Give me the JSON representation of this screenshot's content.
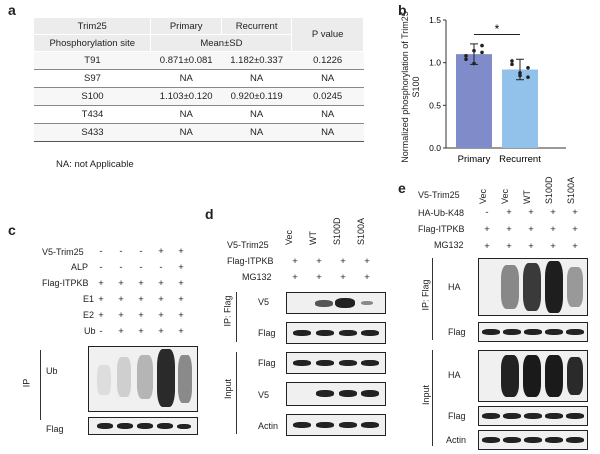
{
  "panels": {
    "a": "a",
    "b": "b",
    "c": "c",
    "d": "d",
    "e": "e"
  },
  "table": {
    "h1": [
      "Trim25",
      "Primary",
      "Recurrent",
      "P value"
    ],
    "h2": [
      "Phosphorylation site",
      "Mean±SD"
    ],
    "rows": [
      [
        "T91",
        "0.871±0.081",
        "1.182±0.337",
        "0.1226"
      ],
      [
        "S97",
        "NA",
        "NA",
        "NA"
      ],
      [
        "S100",
        "1.103±0.120",
        "0.920±0.119",
        "0.0245"
      ],
      [
        "T434",
        "NA",
        "NA",
        "NA"
      ],
      [
        "S433",
        "NA",
        "NA",
        "NA"
      ]
    ],
    "note": "NA: not Applicable"
  },
  "chart_data": {
    "type": "bar",
    "categories": [
      "Primary",
      "Recurrent"
    ],
    "values": [
      1.1,
      0.92
    ],
    "errors": [
      0.12,
      0.12
    ],
    "points": [
      [
        1.04,
        1.14,
        1.2,
        1.08,
        0.99,
        1.12
      ],
      [
        0.98,
        0.85,
        0.94,
        1.02,
        0.88,
        0.83
      ]
    ],
    "ylabel": "Normalized phosphorylation of Trim25 S100",
    "yticks": [
      "0.0",
      "0.5",
      "1.0",
      "1.5"
    ],
    "ylim": [
      0,
      1.5
    ],
    "significance": "*",
    "colors": [
      "#7f8cc9",
      "#92c1ea"
    ]
  },
  "c": {
    "rows": [
      {
        "label": "V5-Trim25",
        "signs": [
          "-",
          "-",
          "-",
          "+",
          "+"
        ]
      },
      {
        "label": "ALP",
        "signs": [
          "-",
          "-",
          "-",
          "-",
          "+"
        ]
      },
      {
        "label": "Flag-ITPKB",
        "signs": [
          "+",
          "+",
          "+",
          "+",
          "+"
        ]
      },
      {
        "label": "E1",
        "signs": [
          "+",
          "+",
          "+",
          "+",
          "+"
        ]
      },
      {
        "label": "E2",
        "signs": [
          "+",
          "+",
          "+",
          "+",
          "+"
        ]
      },
      {
        "label": "Ub",
        "signs": [
          "-",
          "+",
          "+",
          "+",
          "+"
        ]
      }
    ],
    "side": "IP",
    "blots": [
      "Ub",
      "Flag"
    ]
  },
  "d": {
    "lanes": [
      "Vec",
      "WT",
      "S100D",
      "S100A"
    ],
    "rows": [
      {
        "label": "V5-Trim25",
        "signs": []
      },
      {
        "label": "Flag-ITPKB",
        "signs": [
          "+",
          "+",
          "+",
          "+"
        ]
      },
      {
        "label": "MG132",
        "signs": [
          "+",
          "+",
          "+",
          "+"
        ]
      }
    ],
    "sides": [
      "IP: Flag",
      "Input"
    ],
    "blots": [
      "V5",
      "Flag",
      "Flag",
      "V5",
      "Actin"
    ]
  },
  "e": {
    "lanes": [
      "Vec",
      "Vec",
      "WT",
      "S100D",
      "S100A"
    ],
    "rows": [
      {
        "label": "V5-Trim25",
        "signs": []
      },
      {
        "label": "HA-Ub-K48",
        "signs": [
          "-",
          "+",
          "+",
          "+",
          "+"
        ]
      },
      {
        "label": "Flag-ITPKB",
        "signs": [
          "+",
          "+",
          "+",
          "+",
          "+"
        ]
      },
      {
        "label": "MG132",
        "signs": [
          "+",
          "+",
          "+",
          "+",
          "+"
        ]
      }
    ],
    "sides": [
      "IP: Flag",
      "Input"
    ],
    "blots": [
      "HA",
      "Flag",
      "HA",
      "Flag",
      "Actin"
    ]
  }
}
